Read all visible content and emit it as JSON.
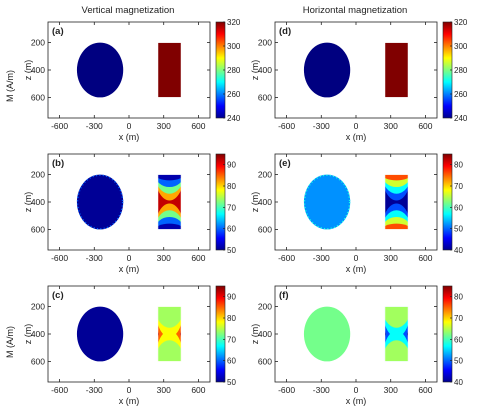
{
  "col_titles": [
    "Vertical  magnetization",
    "Horizontal  magnetization"
  ],
  "ylabel_outer": "M (A/m)",
  "colors": {
    "axis": "#222222",
    "background": "#ffffff"
  },
  "chart_data": [
    {
      "type": "heatmap",
      "panel": "(a)",
      "xlabel": "x (m)",
      "ylabel": "z (m)",
      "xlim": [
        -700,
        700
      ],
      "ylim": [
        50,
        750
      ],
      "y_inverted": true,
      "xticks": [
        "-600",
        "-300",
        "0",
        "300",
        "600"
      ],
      "yticks": [
        "200",
        "400",
        "600"
      ],
      "colorbar": {
        "min": 240,
        "max": 320,
        "ticks": [
          "240",
          "260",
          "280",
          "300",
          "320"
        ]
      },
      "bodies": [
        {
          "shape": "circle",
          "center_x": -250,
          "center_z": 400,
          "radius": 200,
          "value": 240
        },
        {
          "shape": "rectangle",
          "x_range": [
            250,
            450
          ],
          "z_range": [
            200,
            600
          ],
          "value": 320
        }
      ]
    },
    {
      "type": "heatmap",
      "panel": "(d)",
      "xlabel": "x (m)",
      "ylabel": "z (m)",
      "xlim": [
        -700,
        700
      ],
      "ylim": [
        50,
        750
      ],
      "y_inverted": true,
      "xticks": [
        "-600",
        "-300",
        "0",
        "300",
        "600"
      ],
      "yticks": [
        "200",
        "400",
        "600"
      ],
      "colorbar": {
        "min": 240,
        "max": 320,
        "ticks": [
          "240",
          "260",
          "280",
          "300",
          "320"
        ]
      },
      "bodies": [
        {
          "shape": "circle",
          "center_x": -250,
          "center_z": 400,
          "radius": 200,
          "value": 240
        },
        {
          "shape": "rectangle",
          "x_range": [
            250,
            450
          ],
          "z_range": [
            200,
            600
          ],
          "value": 320
        }
      ]
    },
    {
      "type": "heatmap",
      "panel": "(b)",
      "xlabel": "x (m)",
      "ylabel": "z (m)",
      "xlim": [
        -700,
        700
      ],
      "ylim": [
        50,
        750
      ],
      "y_inverted": true,
      "xticks": [
        "-600",
        "-300",
        "0",
        "300",
        "600"
      ],
      "yticks": [
        "200",
        "400",
        "600"
      ],
      "colorbar": {
        "min": 50,
        "max": 95,
        "ticks": [
          "50",
          "60",
          "70",
          "80",
          "90"
        ]
      },
      "bodies": [
        {
          "shape": "circle",
          "center_x": -250,
          "center_z": 400,
          "radius": 200,
          "value": 51,
          "edge_value": 60
        },
        {
          "shape": "rectangle",
          "x_range": [
            250,
            450
          ],
          "z_range": [
            200,
            600
          ],
          "value": 92,
          "bands": [
            {
              "value": 82,
              "reach": 0.27
            },
            {
              "value": 72,
              "reach": 0.2
            },
            {
              "value": 60,
              "reach": 0.13
            },
            {
              "value": 52,
              "reach": 0.06
            }
          ]
        }
      ]
    },
    {
      "type": "heatmap",
      "panel": "(e)",
      "xlabel": "x (m)",
      "ylabel": "z (m)",
      "xlim": [
        -700,
        700
      ],
      "ylim": [
        50,
        750
      ],
      "y_inverted": true,
      "xticks": [
        "-600",
        "-300",
        "0",
        "300",
        "600"
      ],
      "yticks": [
        "200",
        "400",
        "600"
      ],
      "colorbar": {
        "min": 40,
        "max": 85,
        "ticks": [
          "40",
          "50",
          "60",
          "70",
          "80"
        ]
      },
      "bodies": [
        {
          "shape": "circle",
          "center_x": -250,
          "center_z": 400,
          "radius": 200,
          "value": 52,
          "edge_value": 58
        },
        {
          "shape": "rectangle",
          "x_range": [
            250,
            450
          ],
          "z_range": [
            200,
            600
          ],
          "value": 41,
          "bands": [
            {
              "value": 49,
              "reach": 0.27
            },
            {
              "value": 57,
              "reach": 0.2
            },
            {
              "value": 66,
              "reach": 0.13
            },
            {
              "value": 76,
              "reach": 0.06
            }
          ]
        }
      ]
    },
    {
      "type": "heatmap",
      "panel": "(c)",
      "xlabel": "x (m)",
      "ylabel": "z (m)",
      "xlim": [
        -700,
        700
      ],
      "ylim": [
        50,
        750
      ],
      "y_inverted": true,
      "xticks": [
        "-600",
        "-300",
        "0",
        "300",
        "600"
      ],
      "yticks": [
        "200",
        "400",
        "600"
      ],
      "colorbar": {
        "min": 50,
        "max": 95,
        "ticks": [
          "50",
          "60",
          "70",
          "80",
          "90"
        ]
      },
      "bodies": [
        {
          "shape": "circle",
          "center_x": -250,
          "center_z": 400,
          "radius": 200,
          "value": 51
        },
        {
          "shape": "rectangle",
          "x_range": [
            250,
            450
          ],
          "z_range": [
            200,
            600
          ],
          "value": 92,
          "bands": [
            {
              "value": 85,
              "reach": 0.42
            },
            {
              "value": 78,
              "reach": 0.32
            },
            {
              "value": 74,
              "reach": 0.22
            }
          ]
        }
      ]
    },
    {
      "type": "heatmap",
      "panel": "(f)",
      "xlabel": "x (m)",
      "ylabel": "z (m)",
      "xlim": [
        -700,
        700
      ],
      "ylim": [
        50,
        750
      ],
      "y_inverted": true,
      "xticks": [
        "-600",
        "-300",
        "0",
        "300",
        "600"
      ],
      "yticks": [
        "200",
        "400",
        "600"
      ],
      "colorbar": {
        "min": 40,
        "max": 85,
        "ticks": [
          "40",
          "50",
          "60",
          "70",
          "80"
        ]
      },
      "bodies": [
        {
          "shape": "circle",
          "center_x": -250,
          "center_z": 400,
          "radius": 200,
          "value": 62
        },
        {
          "shape": "rectangle",
          "x_range": [
            250,
            450
          ],
          "z_range": [
            200,
            600
          ],
          "value": 41,
          "bands": [
            {
              "value": 49,
              "reach": 0.42
            },
            {
              "value": 57,
              "reach": 0.32
            },
            {
              "value": 64,
              "reach": 0.22
            }
          ]
        }
      ]
    }
  ]
}
